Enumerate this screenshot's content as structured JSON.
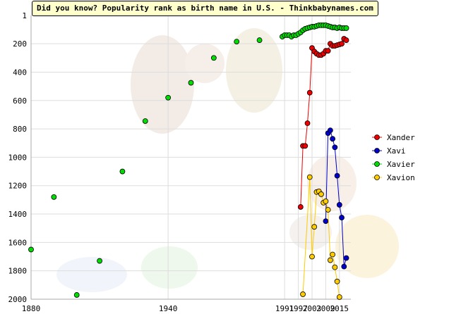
{
  "chart_data": {
    "type": "line",
    "title": "Did you know? Popularity rank as birth name in U.S. - Thinkbabynames.com",
    "xlabel": "",
    "ylabel": "",
    "xlim": [
      1880,
      2020
    ],
    "ylim": [
      1,
      2000
    ],
    "y_reversed": true,
    "x_ticks": [
      1880,
      1940,
      1991,
      1997,
      2003,
      2009,
      2015
    ],
    "y_ticks": [
      1,
      200,
      400,
      600,
      800,
      1000,
      1200,
      1400,
      1600,
      1800,
      2000
    ],
    "x_tick_labels": [
      "1880",
      "1940",
      "1991",
      "1997",
      "2003",
      "2009",
      "2015"
    ],
    "y_tick_labels": [
      "1",
      "200",
      "400",
      "600",
      "800",
      "1000",
      "1200",
      "1400",
      "1600",
      "1800",
      "2000"
    ],
    "grid": true,
    "legend_position": "right",
    "colors": {
      "Xander": "#ee0000",
      "Xavi": "#0000cc",
      "Xavier": "#00dd00",
      "Xavion": "#ffcc00"
    },
    "series": [
      {
        "name": "Xander",
        "x": [
          1998,
          1999,
          2000,
          2001,
          2002,
          2003,
          2004,
          2005,
          2006,
          2007,
          2008,
          2009,
          2010,
          2011,
          2012,
          2013,
          2014,
          2015,
          2016,
          2017,
          2018
        ],
        "y": [
          1350,
          920,
          920,
          760,
          545,
          230,
          255,
          270,
          280,
          280,
          270,
          250,
          250,
          200,
          215,
          215,
          210,
          205,
          200,
          165,
          175
        ]
      },
      {
        "name": "Xavi",
        "x": [
          2009,
          2010,
          2011,
          2012,
          2013,
          2014,
          2015,
          2016,
          2017,
          2018
        ],
        "y": [
          1450,
          830,
          810,
          870,
          930,
          1130,
          1335,
          1425,
          1770,
          1710
        ]
      },
      {
        "name": "Xavier",
        "x": [
          1880,
          1881,
          1882,
          1883,
          1884,
          1885,
          1886,
          1887,
          1888,
          1889,
          1890,
          1891,
          1892,
          1893,
          1894,
          1895,
          1896,
          1897,
          1898,
          1899,
          1900,
          1901,
          1902,
          1903,
          1904,
          1905,
          1906,
          1907,
          1908,
          1909,
          1910,
          1911,
          1912,
          1913,
          1914,
          1915,
          1916,
          1917,
          1918,
          1919,
          1920,
          1921,
          1922,
          1923,
          1924,
          1925,
          1926,
          1927,
          1928,
          1929,
          1930,
          1931,
          1932,
          1933,
          1934,
          1935,
          1936,
          1937,
          1938,
          1939,
          1940,
          1941,
          1942,
          1943,
          1944,
          1945,
          1946,
          1947,
          1948,
          1949,
          1950,
          1951,
          1952,
          1953,
          1954,
          1955,
          1956,
          1957,
          1958,
          1959,
          1960,
          1961,
          1962,
          1963,
          1964,
          1965,
          1966,
          1967,
          1968,
          1969,
          1970,
          1971,
          1972,
          1973,
          1974,
          1975,
          1976,
          1977,
          1978,
          1979,
          1980,
          1981,
          1982,
          1983,
          1984,
          1985,
          1986,
          1987,
          1988,
          1989,
          1990,
          1991,
          1992,
          1993,
          1994,
          1995,
          1996,
          1997,
          1998,
          1999,
          2000,
          2001,
          2002,
          2003,
          2004,
          2005,
          2006,
          2007,
          2008,
          2009,
          2010,
          2011,
          2012,
          2013,
          2014,
          2015,
          2016,
          2017,
          2018
        ],
        "y": [
          1650,
          null,
          null,
          null,
          null,
          null,
          null,
          null,
          null,
          null,
          1280,
          null,
          null,
          null,
          null,
          null,
          null,
          null,
          null,
          null,
          1970,
          null,
          null,
          null,
          null,
          null,
          null,
          null,
          null,
          null,
          1730,
          null,
          null,
          null,
          null,
          null,
          null,
          null,
          null,
          null,
          1100,
          null,
          null,
          null,
          null,
          null,
          null,
          null,
          null,
          null,
          745,
          null,
          null,
          null,
          null,
          null,
          null,
          null,
          null,
          null,
          580,
          null,
          null,
          null,
          null,
          null,
          null,
          null,
          null,
          null,
          475,
          null,
          null,
          null,
          null,
          null,
          null,
          null,
          null,
          null,
          300,
          null,
          null,
          null,
          null,
          null,
          null,
          null,
          null,
          null,
          185,
          null,
          null,
          null,
          null,
          null,
          null,
          null,
          null,
          null,
          175,
          null,
          null,
          null,
          null,
          null,
          null,
          null,
          null,
          null,
          150,
          140,
          140,
          140,
          150,
          140,
          140,
          130,
          120,
          105,
          95,
          90,
          85,
          80,
          80,
          75,
          70,
          70,
          70,
          70,
          75,
          80,
          85,
          85,
          90,
          85,
          90,
          90,
          90
        ]
      },
      {
        "name": "Xavion",
        "x": [
          1999,
          2002,
          2003,
          2004,
          2005,
          2006,
          2007,
          2008,
          2009,
          2010,
          2011,
          2012,
          2013,
          2014,
          2015
        ],
        "y": [
          1965,
          1140,
          1700,
          1490,
          1245,
          1240,
          1260,
          1320,
          1310,
          1370,
          1725,
          1685,
          1775,
          1875,
          1985
        ]
      }
    ]
  }
}
